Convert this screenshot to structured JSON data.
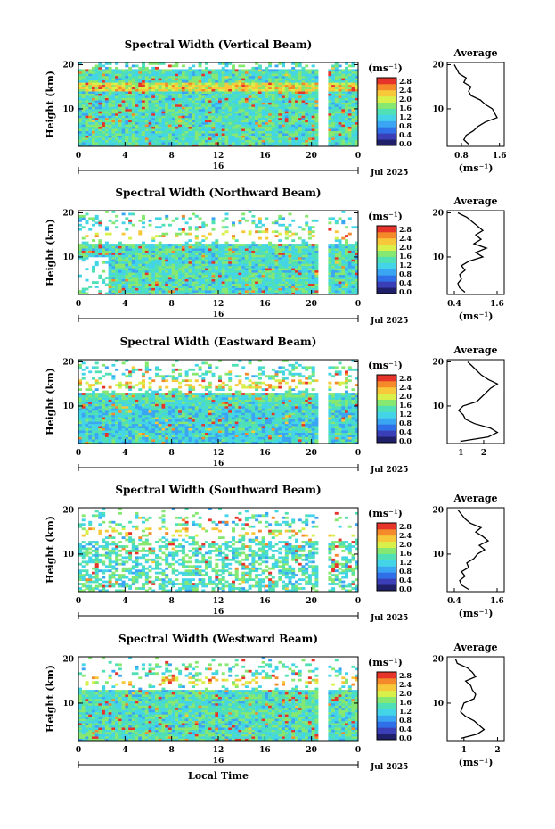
{
  "figure": {
    "xlabel": "Local Time",
    "date_label": "Jul 2025",
    "day_label": "16",
    "colorbar_unit": "(ms⁻¹)",
    "colorbar_ticks": [
      "2.8",
      "2.4",
      "2.0",
      "1.6",
      "1.2",
      "0.8",
      "0.4",
      "0.0"
    ]
  },
  "chart_data": [
    {
      "type": "heatmap",
      "title": "Spectral Width (Vertical Beam)",
      "ylabel": "Height (km)",
      "x_ticks": [
        "0",
        "4",
        "8",
        "12",
        "16",
        "20",
        "0"
      ],
      "y_ticks": [
        "20",
        "10"
      ],
      "xlim": [
        0,
        24
      ],
      "ylim": [
        1.5,
        20.5
      ],
      "profile": {
        "title": "Average",
        "xlabel": "(ms⁻¹)",
        "x_ticks": [
          "0.8",
          "1.6"
        ],
        "xlim": [
          0.5,
          1.7
        ],
        "heights": [
          2,
          3,
          4,
          5,
          6,
          7,
          8,
          9,
          10,
          11,
          12,
          13,
          14,
          15,
          16,
          17,
          18,
          19,
          20
        ],
        "values": [
          0.95,
          0.85,
          0.9,
          1.05,
          1.15,
          1.3,
          1.55,
          1.5,
          1.45,
          1.3,
          1.2,
          1.0,
          0.95,
          1.0,
          0.85,
          0.9,
          0.75,
          0.7,
          0.65
        ]
      }
    },
    {
      "type": "heatmap",
      "title": "Spectral Width (Northward Beam)",
      "ylabel": "Height (km)",
      "x_ticks": [
        "0",
        "4",
        "8",
        "12",
        "16",
        "20",
        "0"
      ],
      "y_ticks": [
        "20",
        "10"
      ],
      "xlim": [
        0,
        24
      ],
      "ylim": [
        1.5,
        20.5
      ],
      "profile": {
        "title": "Average",
        "xlabel": "(ms⁻¹)",
        "x_ticks": [
          "0.4",
          "1.6"
        ],
        "xlim": [
          0.2,
          1.8
        ],
        "heights": [
          2,
          3,
          4,
          5,
          6,
          7,
          8,
          9,
          10,
          11,
          12,
          13,
          14,
          15,
          16,
          17,
          18,
          19,
          20
        ],
        "values": [
          0.7,
          0.55,
          0.5,
          0.6,
          0.55,
          0.7,
          0.6,
          0.8,
          1.2,
          1.0,
          1.3,
          0.95,
          1.15,
          1.0,
          1.2,
          1.05,
          0.9,
          0.75,
          0.5
        ]
      }
    },
    {
      "type": "heatmap",
      "title": "Spectral Width (Eastward Beam)",
      "ylabel": "Height (km)",
      "x_ticks": [
        "0",
        "4",
        "8",
        "12",
        "16",
        "20",
        "0"
      ],
      "y_ticks": [
        "20",
        "10"
      ],
      "xlim": [
        0,
        24
      ],
      "ylim": [
        1.5,
        20.5
      ],
      "profile": {
        "title": "Average",
        "xlabel": "",
        "x_ticks": [
          "1",
          "2"
        ],
        "xlim": [
          0.4,
          2.9
        ],
        "heights": [
          2,
          3,
          4,
          5,
          6,
          7,
          8,
          9,
          10,
          11,
          12,
          13,
          14,
          15,
          16,
          17,
          18,
          19,
          20
        ],
        "values": [
          1.0,
          2.2,
          2.6,
          2.3,
          1.6,
          1.2,
          1.1,
          0.9,
          1.1,
          1.7,
          1.9,
          2.1,
          2.3,
          2.6,
          2.2,
          1.9,
          1.7,
          1.5,
          1.3
        ]
      }
    },
    {
      "type": "heatmap",
      "title": "Spectral Width (Southward Beam)",
      "ylabel": "Height (km)",
      "x_ticks": [
        "0",
        "4",
        "8",
        "12",
        "16",
        "20",
        "0"
      ],
      "y_ticks": [
        "20",
        "10"
      ],
      "xlim": [
        0,
        24
      ],
      "ylim": [
        1.5,
        20.5
      ],
      "profile": {
        "title": "Average",
        "xlabel": "(ms⁻¹)",
        "x_ticks": [
          "0.4",
          "1.6"
        ],
        "xlim": [
          0.2,
          1.8
        ],
        "heights": [
          2,
          3,
          4,
          5,
          6,
          7,
          8,
          9,
          10,
          11,
          12,
          13,
          14,
          15,
          16,
          17,
          18,
          19,
          20
        ],
        "values": [
          0.8,
          0.6,
          0.55,
          0.7,
          0.6,
          0.8,
          0.75,
          0.95,
          1.05,
          1.25,
          1.1,
          1.35,
          1.2,
          1.0,
          1.15,
          0.85,
          0.7,
          0.6,
          0.5
        ]
      }
    },
    {
      "type": "heatmap",
      "title": "Spectral Width (Westward Beam)",
      "ylabel": "Height (km)",
      "x_ticks": [
        "0",
        "4",
        "8",
        "12",
        "16",
        "20",
        "0"
      ],
      "y_ticks": [
        "20",
        "10"
      ],
      "xlim": [
        0,
        24
      ],
      "ylim": [
        1.5,
        20.5
      ],
      "profile": {
        "title": "Average",
        "xlabel": "(ms⁻¹)",
        "x_ticks": [
          "1",
          "2"
        ],
        "xlim": [
          0.5,
          2.2
        ],
        "heights": [
          2,
          3,
          4,
          5,
          6,
          7,
          8,
          9,
          10,
          11,
          12,
          13,
          14,
          15,
          16,
          17,
          18,
          19,
          20
        ],
        "values": [
          0.9,
          1.4,
          1.6,
          1.45,
          1.3,
          1.05,
          0.9,
          0.95,
          1.0,
          1.3,
          1.35,
          1.25,
          1.2,
          1.05,
          1.35,
          1.25,
          1.1,
          0.8,
          0.75
        ]
      }
    }
  ]
}
